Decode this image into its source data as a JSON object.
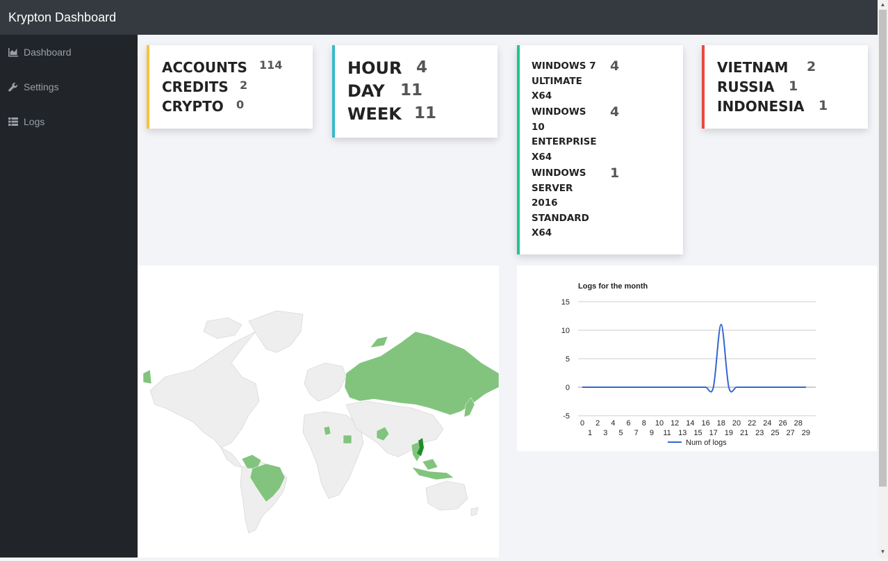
{
  "app": {
    "title": "Krypton Dashboard"
  },
  "sidebar": {
    "items": [
      {
        "label": "Dashboard",
        "icon": "area-chart-icon"
      },
      {
        "label": "Settings",
        "icon": "wrench-icon"
      },
      {
        "label": "Logs",
        "icon": "table-list-icon"
      }
    ]
  },
  "cards": {
    "totals": {
      "accent": "#f6c23e",
      "rows": [
        {
          "label": "ACCOUNTS",
          "value": "114"
        },
        {
          "label": "CREDITS",
          "value": "2"
        },
        {
          "label": "CRYPTO",
          "value": "0"
        }
      ]
    },
    "periods": {
      "accent": "#36b9cc",
      "rows": [
        {
          "label": "HOUR",
          "value": "4"
        },
        {
          "label": "DAY",
          "value": "11"
        },
        {
          "label": "WEEK",
          "value": "11"
        }
      ]
    },
    "os": {
      "accent": "#1cc88a",
      "rows": [
        {
          "lines": [
            "WINDOWS 7",
            "ULTIMATE",
            "X64"
          ],
          "value": "4"
        },
        {
          "lines": [
            "WINDOWS",
            "10",
            "ENTERPRISE",
            "X64"
          ],
          "value": "4"
        },
        {
          "lines": [
            "WINDOWS",
            "SERVER",
            "2016",
            "STANDARD",
            "X64"
          ],
          "value": "1"
        }
      ]
    },
    "countries": {
      "accent": "#e74a3b",
      "rows": [
        {
          "label": "VIETNAM",
          "value": "2"
        },
        {
          "label": "RUSSIA",
          "value": "1"
        },
        {
          "label": "INDONESIA",
          "value": "1"
        }
      ]
    }
  },
  "map": {
    "highlight_color": "#82c47e",
    "strong_color": "#1e8c2a",
    "base_color": "#eeeeee",
    "highlighted_regions": [
      "Russia",
      "Brazil",
      "Venezuela",
      "Colombia",
      "Pakistan",
      "Vietnam",
      "Indonesia",
      "Malaysia",
      "Thailand",
      "Cambodia",
      "Egypt",
      "Japan",
      "Algeria"
    ]
  },
  "chart_data": {
    "type": "line",
    "title": "Logs for the month",
    "xlabel": "",
    "ylabel": "",
    "x": [
      0,
      1,
      2,
      3,
      4,
      5,
      6,
      7,
      8,
      9,
      10,
      11,
      12,
      13,
      14,
      15,
      16,
      17,
      18,
      19,
      20,
      21,
      22,
      23,
      24,
      25,
      26,
      27,
      28,
      29
    ],
    "series": [
      {
        "name": "Num of logs",
        "color": "#3366cc",
        "values": [
          0,
          0,
          0,
          0,
          0,
          0,
          0,
          0,
          0,
          0,
          0,
          0,
          0,
          0,
          0,
          0,
          0,
          0,
          11,
          0,
          0,
          0,
          0,
          0,
          0,
          0,
          0,
          0,
          0,
          0
        ]
      }
    ],
    "ylim": [
      -5,
      15
    ],
    "yticks": [
      -5,
      0,
      5,
      10,
      15
    ],
    "xticks_row1": [
      0,
      2,
      4,
      6,
      8,
      10,
      12,
      14,
      16,
      18,
      20,
      22,
      24,
      26,
      28
    ],
    "xticks_row2": [
      1,
      3,
      5,
      7,
      9,
      11,
      13,
      15,
      17,
      19,
      21,
      23,
      25,
      27,
      29
    ],
    "legend": "bottom",
    "grid": true
  }
}
